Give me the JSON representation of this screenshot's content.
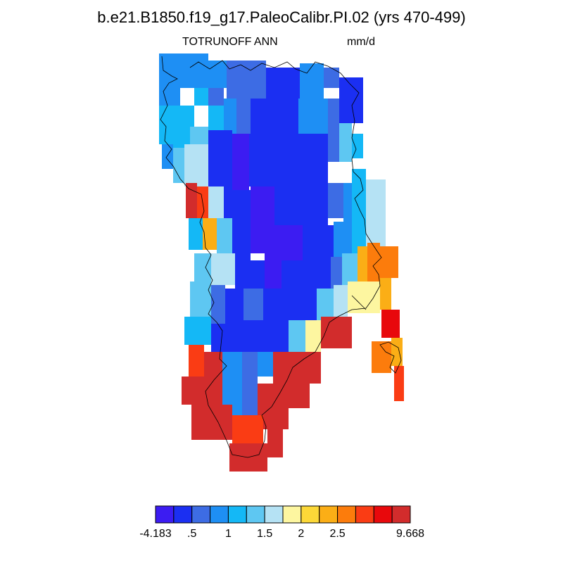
{
  "header": {
    "title": "b.e21.B1850.f19_g17.PaleoCalibr.PI.02 (yrs 470-499)",
    "variable": "TOTRUNOFF ANN",
    "units": "mm/d"
  },
  "palette": [
    "#3c1cf2",
    "#1b2ff2",
    "#3d6ce4",
    "#1e8ff4",
    "#14b8f6",
    "#5ec7f2",
    "#b5e2f4",
    "#fdf6a0",
    "#fcd838",
    "#fbae16",
    "#fc7c0c",
    "#fa3c14",
    "#e8080c",
    "#d22c2c"
  ],
  "colorbar": {
    "labels": [
      "-4.183",
      ".5",
      "1",
      "1.5",
      "2",
      "2.5",
      "9.668"
    ],
    "label_after_bin": [
      0,
      2,
      4,
      6,
      8,
      10,
      14
    ]
  },
  "map": {
    "description_of_encoding": "cells use palette bin indices 0-13",
    "cells": [
      [
        226,
        76,
        256,
        150,
        3
      ],
      [
        256,
        76,
        296,
        125,
        3
      ],
      [
        226,
        150,
        276,
        205,
        4
      ],
      [
        276,
        125,
        296,
        150,
        4
      ],
      [
        296,
        86,
        322,
        125,
        3
      ],
      [
        322,
        86,
        378,
        140,
        2
      ],
      [
        378,
        96,
        426,
        140,
        1
      ],
      [
        426,
        90,
        460,
        140,
        3
      ],
      [
        460,
        96,
        482,
        125,
        2
      ],
      [
        482,
        110,
        516,
        160,
        1
      ],
      [
        296,
        125,
        318,
        160,
        2
      ],
      [
        246,
        190,
        270,
        230,
        4
      ],
      [
        270,
        180,
        296,
        240,
        5
      ],
      [
        296,
        150,
        318,
        190,
        4
      ],
      [
        318,
        140,
        336,
        190,
        3
      ],
      [
        336,
        140,
        356,
        190,
        2
      ],
      [
        356,
        140,
        388,
        190,
        1
      ],
      [
        388,
        140,
        424,
        190,
        1
      ],
      [
        424,
        140,
        466,
        190,
        3
      ],
      [
        466,
        140,
        482,
        175,
        2
      ],
      [
        482,
        160,
        516,
        175,
        1
      ],
      [
        230,
        205,
        246,
        240,
        3
      ],
      [
        246,
        210,
        262,
        260,
        5
      ],
      [
        262,
        205,
        296,
        265,
        6
      ],
      [
        296,
        185,
        330,
        270,
        1
      ],
      [
        330,
        190,
        354,
        270,
        0
      ],
      [
        354,
        190,
        416,
        265,
        1
      ],
      [
        416,
        190,
        466,
        270,
        1
      ],
      [
        466,
        175,
        482,
        230,
        2
      ],
      [
        482,
        175,
        500,
        230,
        5
      ],
      [
        500,
        190,
        516,
        225,
        4
      ],
      [
        264,
        260,
        280,
        310,
        13
      ],
      [
        280,
        265,
        296,
        310,
        11
      ],
      [
        296,
        265,
        318,
        310,
        6
      ],
      [
        318,
        270,
        356,
        320,
        1
      ],
      [
        356,
        265,
        390,
        320,
        0
      ],
      [
        390,
        265,
        416,
        320,
        1
      ],
      [
        416,
        270,
        466,
        320,
        1
      ],
      [
        466,
        260,
        488,
        310,
        2
      ],
      [
        488,
        260,
        500,
        315,
        3
      ],
      [
        500,
        240,
        520,
        310,
        4
      ],
      [
        520,
        255,
        548,
        305,
        6
      ],
      [
        268,
        310,
        288,
        355,
        4
      ],
      [
        288,
        310,
        308,
        355,
        9
      ],
      [
        308,
        310,
        330,
        360,
        5
      ],
      [
        330,
        320,
        356,
        370,
        1
      ],
      [
        356,
        320,
        384,
        360,
        0
      ],
      [
        384,
        320,
        430,
        370,
        0
      ],
      [
        430,
        320,
        474,
        370,
        1
      ],
      [
        474,
        315,
        500,
        365,
        3
      ],
      [
        500,
        310,
        520,
        360,
        4
      ],
      [
        520,
        300,
        548,
        350,
        6
      ],
      [
        276,
        360,
        300,
        400,
        5
      ],
      [
        300,
        360,
        334,
        405,
        6
      ],
      [
        334,
        370,
        376,
        410,
        1
      ],
      [
        376,
        360,
        400,
        410,
        0
      ],
      [
        400,
        370,
        470,
        410,
        1
      ],
      [
        470,
        365,
        486,
        410,
        2
      ],
      [
        486,
        360,
        508,
        410,
        5
      ],
      [
        508,
        350,
        522,
        400,
        9
      ],
      [
        522,
        345,
        540,
        400,
        10
      ],
      [
        540,
        350,
        566,
        395,
        10
      ],
      [
        270,
        400,
        300,
        450,
        5
      ],
      [
        300,
        405,
        320,
        460,
        2
      ],
      [
        320,
        410,
        346,
        460,
        1
      ],
      [
        346,
        410,
        374,
        460,
        2
      ],
      [
        374,
        410,
        410,
        455,
        1
      ],
      [
        410,
        410,
        450,
        455,
        1
      ],
      [
        450,
        410,
        474,
        455,
        5
      ],
      [
        474,
        405,
        494,
        450,
        6
      ],
      [
        494,
        400,
        540,
        445,
        7
      ],
      [
        540,
        395,
        556,
        440,
        9
      ],
      [
        262,
        450,
        300,
        490,
        4
      ],
      [
        300,
        460,
        340,
        500,
        1
      ],
      [
        340,
        455,
        410,
        500,
        1
      ],
      [
        410,
        455,
        434,
        500,
        5
      ],
      [
        434,
        455,
        456,
        500,
        7
      ],
      [
        456,
        450,
        500,
        495,
        13
      ],
      [
        542,
        440,
        568,
        480,
        12
      ],
      [
        268,
        490,
        290,
        535,
        11
      ],
      [
        290,
        500,
        316,
        540,
        13
      ],
      [
        316,
        500,
        344,
        580,
        3
      ],
      [
        344,
        500,
        366,
        590,
        2
      ],
      [
        366,
        500,
        388,
        535,
        3
      ],
      [
        388,
        500,
        456,
        545,
        13
      ],
      [
        528,
        485,
        556,
        530,
        10
      ],
      [
        556,
        480,
        572,
        520,
        9
      ],
      [
        560,
        520,
        574,
        570,
        11
      ],
      [
        258,
        535,
        290,
        575,
        13
      ],
      [
        290,
        540,
        316,
        590,
        13
      ],
      [
        316,
        580,
        344,
        590,
        3
      ],
      [
        344,
        590,
        366,
        600,
        2
      ],
      [
        366,
        545,
        410,
        590,
        13
      ],
      [
        410,
        545,
        440,
        580,
        13
      ],
      [
        272,
        575,
        330,
        625,
        13
      ],
      [
        330,
        590,
        374,
        640,
        11
      ],
      [
        374,
        580,
        410,
        610,
        13
      ],
      [
        326,
        630,
        380,
        670,
        13
      ],
      [
        380,
        600,
        402,
        650,
        13
      ]
    ]
  }
}
